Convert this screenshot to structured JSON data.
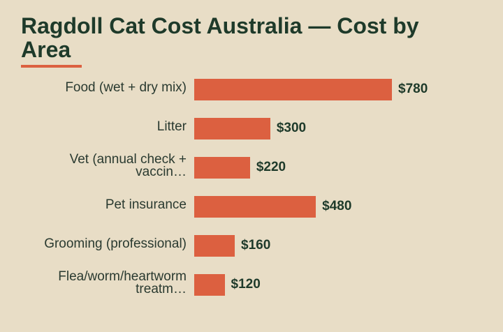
{
  "chart_data": {
    "type": "bar",
    "orientation": "horizontal",
    "title": "Ragdoll Cat Cost Australia — Cost by Area",
    "categories": [
      "Food (wet + dry mix)",
      "Litter",
      "Vet (annual check + vaccin…",
      "Pet insurance",
      "Grooming (professional)",
      "Flea/worm/heartworm treatm…"
    ],
    "values": [
      780,
      300,
      220,
      480,
      160,
      120
    ],
    "value_labels": [
      "$780",
      "$300",
      "$220",
      "$480",
      "$160",
      "$120"
    ],
    "color": "#dc6040"
  }
}
